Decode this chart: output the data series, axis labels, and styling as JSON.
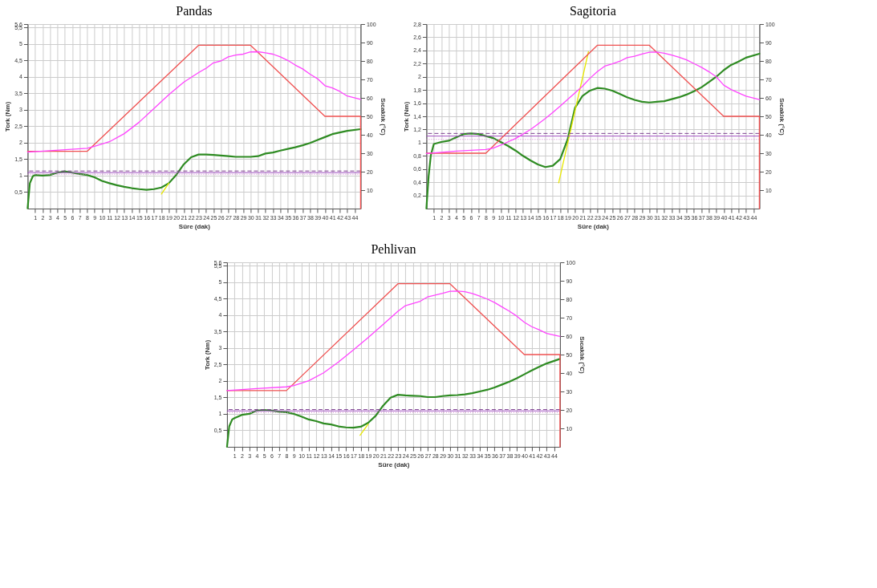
{
  "chart_data": [
    {
      "type": "line",
      "title": "Pandas",
      "xlabel": "Süre (dak)",
      "ylabel": "Tork (Nm)",
      "y2label": "Sıcaklık (°C)",
      "grid": true,
      "xlim": [
        0,
        44.8
      ],
      "xticks": [
        1,
        2,
        3,
        4,
        5,
        6,
        7,
        8,
        9,
        10,
        11,
        12,
        13,
        14,
        15,
        16,
        17,
        18,
        19,
        20,
        21,
        22,
        23,
        24,
        25,
        26,
        27,
        28,
        29,
        30,
        31,
        32,
        33,
        34,
        35,
        36,
        37,
        38,
        39,
        40,
        41,
        42,
        43,
        44
      ],
      "ylim": [
        0,
        5.6
      ],
      "yticks": [
        {
          "value": 0.5,
          "label": "0,5"
        },
        1,
        {
          "value": 1.5,
          "label": "1,5"
        },
        2,
        {
          "value": 2.5,
          "label": "2,5"
        },
        3,
        {
          "value": 3.5,
          "label": "3,5"
        },
        4,
        {
          "value": 4.5,
          "label": "4,5"
        },
        5,
        {
          "value": 5.5,
          "label": "5,5"
        },
        {
          "value": 5.6,
          "label": "5,6"
        }
      ],
      "y2lim": [
        0,
        100
      ],
      "y2ticks": [
        10,
        20,
        30,
        40,
        50,
        60,
        70,
        80,
        90,
        100
      ],
      "series": [
        {
          "color": "#2e8b22",
          "x": [
            0,
            0.3,
            0.7,
            1,
            2,
            3,
            4,
            5,
            6,
            7,
            8,
            9,
            10,
            11,
            12,
            13,
            14,
            15,
            16,
            17,
            18,
            19,
            20,
            21,
            22,
            23,
            24,
            25,
            26,
            27,
            28,
            29,
            30,
            31,
            32,
            33,
            34,
            35,
            36,
            37,
            38,
            39,
            40,
            41,
            42,
            43,
            44.8
          ],
          "values": [
            0.01,
            0.77,
            0.98,
            1.02,
            1.0,
            1.02,
            1.09,
            1.13,
            1.09,
            1.05,
            1.02,
            0.95,
            0.84,
            0.77,
            0.71,
            0.66,
            0.62,
            0.59,
            0.57,
            0.59,
            0.64,
            0.77,
            1.02,
            1.34,
            1.56,
            1.64,
            1.64,
            1.63,
            1.61,
            1.59,
            1.57,
            1.57,
            1.57,
            1.59,
            1.67,
            1.7,
            1.76,
            1.81,
            1.86,
            1.92,
            1.99,
            2.08,
            2.17,
            2.26,
            2.31,
            2.36,
            2.41
          ]
        },
        {
          "color": "#e8e800",
          "x": [
            18,
            19
          ],
          "values": [
            0.44,
            0.77
          ]
        },
        {
          "axis": "y2",
          "color": "#f05050",
          "x": [
            0,
            8,
            23,
            30,
            40,
            44.8,
            44.8
          ],
          "values": [
            31,
            31,
            88.5,
            88.5,
            50,
            50,
            0
          ]
        },
        {
          "axis": "y2",
          "color": "#ff44ff",
          "x": [
            0,
            8,
            9,
            11,
            13,
            15,
            17,
            19,
            21,
            23,
            24,
            25,
            26,
            27,
            28,
            29,
            30,
            31,
            32,
            33,
            34,
            35,
            36,
            37,
            38,
            39,
            40,
            41,
            42,
            43,
            44.8
          ],
          "values": [
            30.6,
            32.7,
            33.7,
            36.2,
            40.6,
            46.8,
            54.2,
            61.7,
            68.5,
            73.7,
            76,
            79,
            80,
            82.2,
            83.2,
            83.7,
            84.9,
            85,
            84.4,
            83.7,
            82.2,
            80.3,
            77.8,
            75.7,
            72.8,
            70.4,
            66.6,
            65.4,
            63.5,
            61,
            59.2
          ]
        }
      ],
      "ref_lines": [
        {
          "axis": "y",
          "value": 1.14,
          "color": "#7b3f8f",
          "line_style": "dashed"
        },
        {
          "axis": "y",
          "value": 1.09,
          "color": "#a050c0",
          "line_style": "solid"
        },
        {
          "axis": "y",
          "value": 1.04,
          "color": "#d080d0",
          "line_style": "dotted"
        }
      ]
    },
    {
      "type": "line",
      "title": "Sagitoria",
      "xlabel": "Süre (dak)",
      "ylabel": "Tork (Nm)",
      "y2label": "Sıcaklık (°C)",
      "grid": true,
      "xlim": [
        0,
        44.8
      ],
      "xticks": [
        1,
        2,
        3,
        4,
        5,
        6,
        7,
        8,
        9,
        10,
        11,
        12,
        13,
        14,
        15,
        16,
        17,
        18,
        19,
        20,
        21,
        22,
        23,
        24,
        25,
        26,
        27,
        28,
        29,
        30,
        31,
        32,
        33,
        34,
        35,
        36,
        37,
        38,
        39,
        40,
        41,
        42,
        43,
        44
      ],
      "ylim": [
        0,
        2.8
      ],
      "yticks": [
        {
          "value": 0.2,
          "label": "0,2"
        },
        {
          "value": 0.4,
          "label": "0,4"
        },
        {
          "value": 0.6,
          "label": "0,6"
        },
        {
          "value": 0.8,
          "label": "0,8"
        },
        1,
        {
          "value": 1.2,
          "label": "1,2"
        },
        {
          "value": 1.4,
          "label": "1,4"
        },
        {
          "value": 1.6,
          "label": "1,6"
        },
        {
          "value": 1.8,
          "label": "1,8"
        },
        2,
        {
          "value": 2.2,
          "label": "2,2"
        },
        {
          "value": 2.4,
          "label": "2,4"
        },
        {
          "value": 2.6,
          "label": "2,6"
        },
        {
          "value": 2.8,
          "label": "2,8"
        }
      ],
      "y2lim": [
        0,
        100
      ],
      "y2ticks": [
        10,
        20,
        30,
        40,
        50,
        60,
        70,
        80,
        90,
        100
      ],
      "series": [
        {
          "color": "#2e8b22",
          "x": [
            0,
            0.3,
            0.6,
            1,
            2,
            3,
            4,
            5,
            6,
            7,
            8,
            9,
            10,
            11,
            12,
            13,
            14,
            15,
            16,
            17,
            18,
            19,
            20,
            21,
            22,
            23,
            24,
            25,
            26,
            27,
            28,
            29,
            30,
            31,
            32,
            33,
            34,
            35,
            36,
            37,
            38,
            39,
            40,
            41,
            42,
            43,
            44.8
          ],
          "values": [
            0,
            0.49,
            0.81,
            0.98,
            1.01,
            1.03,
            1.08,
            1.13,
            1.14,
            1.13,
            1.1,
            1.07,
            1.01,
            0.95,
            0.88,
            0.8,
            0.73,
            0.67,
            0.63,
            0.65,
            0.75,
            1.05,
            1.53,
            1.71,
            1.79,
            1.83,
            1.82,
            1.79,
            1.74,
            1.69,
            1.65,
            1.62,
            1.61,
            1.62,
            1.63,
            1.66,
            1.69,
            1.73,
            1.78,
            1.84,
            1.92,
            2.0,
            2.1,
            2.18,
            2.23,
            2.29,
            2.35
          ]
        },
        {
          "color": "#e8e800",
          "x": [
            17.8,
            21.8
          ],
          "values": [
            0.39,
            2.38
          ]
        },
        {
          "axis": "y2",
          "color": "#f05050",
          "x": [
            0,
            8,
            23,
            30,
            40,
            44.8,
            44.8
          ],
          "values": [
            30,
            30,
            88.5,
            88.5,
            50,
            50,
            0
          ]
        },
        {
          "axis": "y2",
          "color": "#ff44ff",
          "x": [
            0,
            4,
            8,
            9,
            10,
            11,
            12,
            13,
            14,
            15,
            16,
            17,
            18,
            19,
            20,
            21,
            22,
            23,
            24,
            25,
            26,
            27,
            28,
            29,
            30,
            31,
            32,
            33,
            34,
            35,
            36,
            37,
            38,
            39,
            40,
            41,
            42,
            43,
            44.8
          ],
          "values": [
            29.8,
            31.1,
            32,
            32.8,
            34.4,
            36.2,
            38,
            40.4,
            42.8,
            45.8,
            48.8,
            52.1,
            55.5,
            59.1,
            62.7,
            66.3,
            70.6,
            74.2,
            77.2,
            78.4,
            79.8,
            81.8,
            82.6,
            83.8,
            84.7,
            84.8,
            84.2,
            83.2,
            82,
            80.6,
            78.6,
            76.6,
            74.2,
            71.4,
            66.9,
            64.5,
            62.7,
            60.9,
            59.1
          ]
        }
      ],
      "ref_lines": [
        {
          "axis": "y",
          "value": 1.14,
          "color": "#7b3f8f",
          "line_style": "dashed"
        },
        {
          "axis": "y",
          "value": 1.1,
          "color": "#a050c0",
          "line_style": "solid"
        },
        {
          "axis": "y",
          "value": 1.05,
          "color": "#d080d0",
          "line_style": "dotted"
        }
      ]
    },
    {
      "type": "line",
      "title": "Pehlivan",
      "xlabel": "Süre (dak)",
      "ylabel": "Tork (Nm)",
      "y2label": "Sıcaklık (°C)",
      "grid": true,
      "xlim": [
        0,
        44.8
      ],
      "xticks": [
        1,
        2,
        3,
        4,
        5,
        6,
        7,
        8,
        9,
        10,
        11,
        12,
        13,
        14,
        15,
        16,
        17,
        18,
        19,
        20,
        21,
        22,
        23,
        24,
        25,
        26,
        27,
        28,
        29,
        30,
        31,
        32,
        33,
        34,
        35,
        36,
        37,
        38,
        39,
        40,
        41,
        42,
        43,
        44
      ],
      "ylim": [
        0,
        5.6
      ],
      "yticks": [
        {
          "value": 0.5,
          "label": "0,5"
        },
        1,
        {
          "value": 1.5,
          "label": "1,5"
        },
        2,
        {
          "value": 2.5,
          "label": "2,5"
        },
        3,
        {
          "value": 3.5,
          "label": "3,5"
        },
        4,
        {
          "value": 4.5,
          "label": "4,5"
        },
        5,
        {
          "value": 5.5,
          "label": "5,5"
        },
        {
          "value": 5.6,
          "label": "5,6"
        }
      ],
      "y2lim": [
        0,
        100
      ],
      "y2ticks": [
        10,
        20,
        30,
        40,
        50,
        60,
        70,
        80,
        90,
        100
      ],
      "series": [
        {
          "color": "#2e8b22",
          "x": [
            0,
            0.3,
            0.7,
            1,
            2,
            3,
            4,
            5,
            6,
            7,
            8,
            9,
            10,
            11,
            12,
            13,
            14,
            15,
            16,
            17,
            18,
            19,
            20,
            21,
            22,
            23,
            24,
            25,
            26,
            27,
            28,
            29,
            30,
            31,
            32,
            33,
            34,
            35,
            36,
            37,
            38,
            39,
            40,
            41,
            42,
            43,
            44.8
          ],
          "values": [
            0,
            0.62,
            0.83,
            0.87,
            0.97,
            1.0,
            1.1,
            1.12,
            1.1,
            1.07,
            1.05,
            1.0,
            0.92,
            0.83,
            0.78,
            0.71,
            0.68,
            0.62,
            0.59,
            0.58,
            0.61,
            0.73,
            0.94,
            1.25,
            1.49,
            1.58,
            1.56,
            1.55,
            1.54,
            1.51,
            1.51,
            1.54,
            1.56,
            1.57,
            1.59,
            1.63,
            1.68,
            1.73,
            1.8,
            1.89,
            1.98,
            2.08,
            2.2,
            2.32,
            2.43,
            2.53,
            2.67
          ]
        },
        {
          "color": "#e8e800",
          "x": [
            17.9,
            19
          ],
          "values": [
            0.35,
            0.69
          ]
        },
        {
          "axis": "y2",
          "color": "#f05050",
          "x": [
            0,
            8,
            23,
            30,
            40,
            44.8,
            44.8
          ],
          "values": [
            30.5,
            30.5,
            88.4,
            88.4,
            50,
            50,
            0
          ]
        },
        {
          "axis": "y2",
          "color": "#ff44ff",
          "x": [
            0,
            4,
            8,
            9,
            11,
            13,
            15,
            17,
            19,
            21,
            23,
            24,
            25,
            26,
            27,
            28,
            29,
            30,
            31,
            32,
            33,
            34,
            35,
            36,
            37,
            38,
            39,
            40,
            41,
            42,
            43,
            44.8
          ],
          "values": [
            30.5,
            31.6,
            32.5,
            33.2,
            35.8,
            40.1,
            46,
            52.5,
            59.2,
            66.3,
            73.5,
            76.5,
            77.7,
            78.9,
            81.3,
            82.2,
            83.2,
            84.3,
            84.4,
            84.1,
            83.1,
            81.7,
            80.1,
            78.2,
            75.8,
            73.5,
            70.8,
            67.5,
            65.1,
            63.4,
            61.5,
            59.8
          ]
        }
      ],
      "ref_lines": [
        {
          "axis": "y",
          "value": 1.13,
          "color": "#7b3f8f",
          "line_style": "dashed"
        },
        {
          "axis": "y",
          "value": 1.09,
          "color": "#a050c0",
          "line_style": "solid"
        },
        {
          "axis": "y",
          "value": 1.04,
          "color": "#d080d0",
          "line_style": "dotted"
        }
      ]
    }
  ]
}
